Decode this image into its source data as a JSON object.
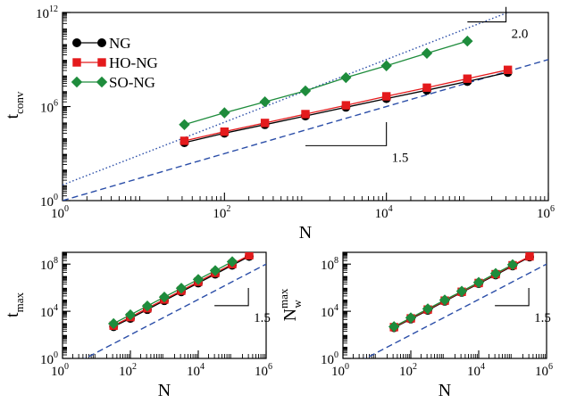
{
  "chart_data": [
    {
      "id": "tconv",
      "type": "line",
      "log_x": true,
      "log_y": true,
      "xlim": [
        1,
        1000000
      ],
      "ylim": [
        1,
        1000000000000
      ],
      "xlabel": "N",
      "ylabel": {
        "main": "t",
        "sub": "conv",
        "sup": ""
      },
      "x_ticks": [
        {
          "base": "10",
          "exp": "0"
        },
        {
          "base": "10",
          "exp": "2"
        },
        {
          "base": "10",
          "exp": "4"
        },
        {
          "base": "10",
          "exp": "6"
        }
      ],
      "y_ticks": [
        {
          "base": "10",
          "exp": "0"
        },
        {
          "base": "10",
          "exp": "6"
        },
        {
          "base": "10",
          "exp": "12"
        }
      ],
      "legend": {
        "position": "top-left",
        "entries": [
          "NG",
          "HO-NG",
          "SO-NG"
        ]
      },
      "series": [
        {
          "name": "NG",
          "color": "#000000",
          "marker": "circle",
          "x": [
            32,
            100,
            316,
            1000,
            3162,
            10000,
            31623,
            100000,
            316228
          ],
          "y": [
            5000,
            20000,
            70000,
            250000,
            900000,
            3200000,
            11000000,
            40000000,
            150000000
          ]
        },
        {
          "name": "HO-NG",
          "color": "#e41a1c",
          "marker": "square",
          "x": [
            32,
            100,
            316,
            1000,
            3162,
            10000,
            31623,
            100000,
            316228
          ],
          "y": [
            6500,
            25000,
            90000,
            330000,
            1200000,
            4500000,
            16000000,
            60000000,
            220000000
          ]
        },
        {
          "name": "SO-NG",
          "color": "#1e8c3c",
          "marker": "diamond",
          "x": [
            32,
            100,
            316,
            1000,
            3162,
            10000,
            31623,
            100000
          ],
          "y": [
            70000,
            400000,
            2000000,
            10000000,
            70000000,
            400000000,
            2500000000,
            15000000000
          ]
        }
      ],
      "reference_lines": [
        {
          "style": "dashed",
          "color": "#2b4ea8",
          "slope": 1.5,
          "y_at_1": 1
        },
        {
          "style": "dotted",
          "color": "#2b4ea8",
          "slope": 2.0,
          "y_at_1": 10
        }
      ],
      "slope_markers": [
        {
          "label": "1.5",
          "slope": 1.5,
          "x0": 1000,
          "x1": 10000,
          "y0": 3200
        },
        {
          "label": "2.0",
          "slope": 2.0,
          "x0": 100000,
          "x1": 300000,
          "y0": 250000000000
        }
      ]
    },
    {
      "id": "tmax",
      "type": "line",
      "log_x": true,
      "log_y": true,
      "xlim": [
        1,
        1000000
      ],
      "ylim": [
        1,
        1000000000
      ],
      "xlabel": "N",
      "ylabel": {
        "main": "t",
        "sub": "max",
        "sup": ""
      },
      "x_ticks": [
        {
          "base": "10",
          "exp": "0"
        },
        {
          "base": "10",
          "exp": "2"
        },
        {
          "base": "10",
          "exp": "4"
        },
        {
          "base": "10",
          "exp": "6"
        }
      ],
      "y_ticks": [
        {
          "base": "10",
          "exp": "0"
        },
        {
          "base": "10",
          "exp": "4"
        },
        {
          "base": "10",
          "exp": "8"
        }
      ],
      "series": [
        {
          "name": "NG",
          "color": "#000000",
          "marker": "circle",
          "x": [
            32,
            100,
            316,
            1000,
            3162,
            10000,
            31623,
            100000,
            316228
          ],
          "y": [
            500,
            2500,
            14000,
            80000,
            450000,
            2500000,
            14000000,
            80000000,
            450000000
          ]
        },
        {
          "name": "HO-NG",
          "color": "#e41a1c",
          "marker": "square",
          "x": [
            32,
            100,
            316,
            1000,
            3162,
            10000,
            31623,
            100000,
            316228
          ],
          "y": [
            600,
            3200,
            18000,
            100000,
            560000,
            3200000,
            18000000,
            100000000,
            560000000
          ]
        },
        {
          "name": "SO-NG",
          "color": "#1e8c3c",
          "marker": "diamond",
          "x": [
            32,
            100,
            316,
            1000,
            3162,
            10000,
            31623,
            100000
          ],
          "y": [
            900,
            5000,
            28000,
            160000,
            900000,
            5000000,
            28000000,
            160000000
          ]
        }
      ],
      "reference_lines": [
        {
          "style": "dashed",
          "color": "#2b4ea8",
          "slope": 1.5,
          "y_at_1": 0.1
        }
      ],
      "slope_markers": [
        {
          "label": "1.5",
          "slope": 1.5,
          "x0": 30000,
          "x1": 300000,
          "y0": 30000
        }
      ]
    },
    {
      "id": "nwmax",
      "type": "line",
      "log_x": true,
      "log_y": true,
      "xlim": [
        1,
        1000000
      ],
      "ylim": [
        1,
        1000000000
      ],
      "xlabel": "N",
      "ylabel": {
        "main": "N",
        "sub": "w",
        "sup": "max"
      },
      "x_ticks": [
        {
          "base": "10",
          "exp": "0"
        },
        {
          "base": "10",
          "exp": "2"
        },
        {
          "base": "10",
          "exp": "4"
        },
        {
          "base": "10",
          "exp": "6"
        }
      ],
      "y_ticks": [
        {
          "base": "10",
          "exp": "0"
        },
        {
          "base": "10",
          "exp": "4"
        },
        {
          "base": "10",
          "exp": "8"
        }
      ],
      "series": [
        {
          "name": "NG",
          "color": "#000000",
          "marker": "circle",
          "x": [
            32,
            100,
            316,
            1000,
            3162,
            10000,
            31623,
            100000,
            316228
          ],
          "y": [
            400,
            2200,
            12000,
            70000,
            400000,
            2200000,
            12000000,
            70000000,
            400000000
          ]
        },
        {
          "name": "HO-NG",
          "color": "#e41a1c",
          "marker": "square",
          "x": [
            32,
            100,
            316,
            1000,
            3162,
            10000,
            31623,
            100000,
            316228
          ],
          "y": [
            450,
            2500,
            14000,
            80000,
            450000,
            2500000,
            14000000,
            80000000,
            450000000
          ]
        },
        {
          "name": "SO-NG",
          "color": "#1e8c3c",
          "marker": "diamond",
          "x": [
            32,
            100,
            316,
            1000,
            3162,
            10000,
            31623,
            100000
          ],
          "y": [
            500,
            2800,
            16000,
            90000,
            500000,
            2800000,
            16000000,
            90000000
          ]
        }
      ],
      "reference_lines": [
        {
          "style": "dashed",
          "color": "#2b4ea8",
          "slope": 1.5,
          "y_at_1": 0.1
        }
      ],
      "slope_markers": [
        {
          "label": "1.5",
          "slope": 1.5,
          "x0": 30000,
          "x1": 300000,
          "y0": 30000
        }
      ]
    }
  ]
}
